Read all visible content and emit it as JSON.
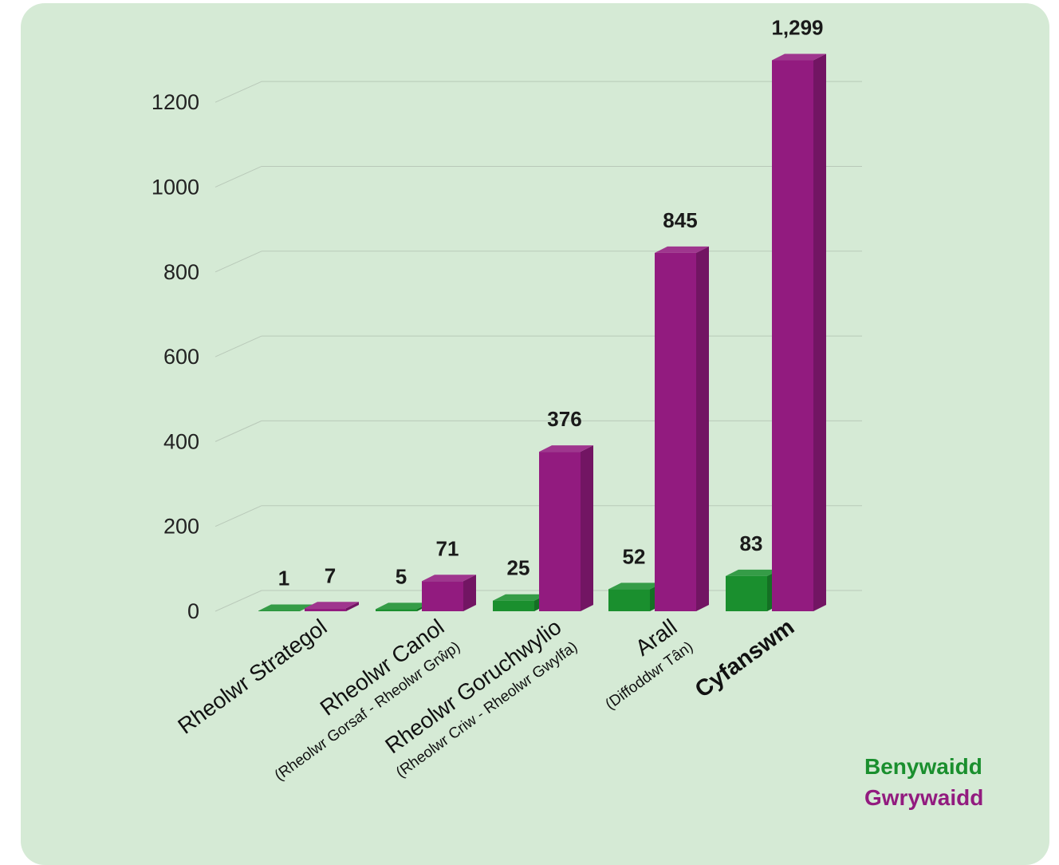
{
  "colors": {
    "background": "#d5ead5",
    "female": "#1a8f2e",
    "male": "#921b7f",
    "grid": "#b9c9b9"
  },
  "legend": {
    "female_label": "Benywaidd",
    "male_label": "Gwrywaidd"
  },
  "chart_data": {
    "type": "bar",
    "style": "3d-grouped",
    "categories": [
      "Rheolwr Strategol",
      "Rheolwr Canol",
      "Rheolwr Goruchwylio",
      "Arall",
      "Cyfanswm"
    ],
    "category_sublabels": [
      "",
      "(Rheolwr Gorsaf - Rheolwr Grŵp)",
      "(Rheolwr Criw - Rheolwr Gwylfa)",
      "(Diffoddwr Tân)",
      ""
    ],
    "series": [
      {
        "name": "Benywaidd",
        "values": [
          1,
          5,
          25,
          52,
          83
        ],
        "labels": [
          "1",
          "5",
          "25",
          "52",
          "83"
        ]
      },
      {
        "name": "Gwrywaidd",
        "values": [
          7,
          71,
          376,
          845,
          1299
        ],
        "labels": [
          "7",
          "71",
          "376",
          "845",
          "1,299"
        ]
      }
    ],
    "yticks": [
      0,
      200,
      400,
      600,
      800,
      1000,
      1200
    ],
    "ylim": [
      0,
      1300
    ],
    "grid": true,
    "legend_position": "bottom-right"
  }
}
